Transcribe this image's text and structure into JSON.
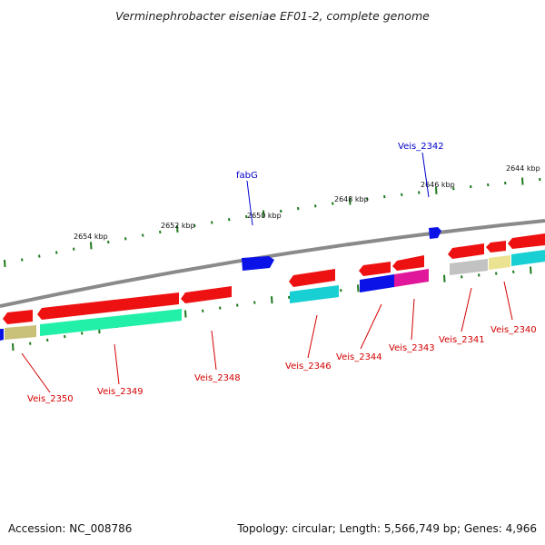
{
  "title": "Verminephrobacter eiseniae EF01-2, complete genome",
  "footer": {
    "accession": "Accession: NC_008786",
    "topology": "Topology: circular; Length: 5,566,749 bp; Genes: 4,966"
  },
  "colors": {
    "backbone": "#8a8a8a",
    "tick": "#1f7a1f",
    "label_red": "#d40000",
    "label_blue": "#0000cc"
  },
  "scale_labels": [
    "2654 kbp",
    "2652 kbp",
    "2650 kbp",
    "2648 kbp",
    "2646 kbp",
    "2644 kbp"
  ],
  "gene_labels_top": [
    {
      "text": "fabG",
      "color": "#0000cc"
    },
    {
      "text": "Veis_2342",
      "color": "#0000cc"
    }
  ],
  "gene_labels_bottom": [
    "Veis_2350",
    "Veis_2349",
    "Veis_2348",
    "Veis_2346",
    "Veis_2344",
    "Veis_2343",
    "Veis_2341",
    "Veis_2340"
  ],
  "genes": [
    {
      "strand": "+",
      "color": "#0a12e8"
    },
    {
      "strand": "+",
      "color": "#0a12e8"
    },
    {
      "strand": "-",
      "color": "#ee1111"
    },
    {
      "strand": "-",
      "color": "#ee1111"
    },
    {
      "strand": "-",
      "color": "#ee1111"
    },
    {
      "strand": "-",
      "color": "#ee1111"
    },
    {
      "strand": "-",
      "color": "#ee1111"
    },
    {
      "strand": "-",
      "color": "#ee1111"
    },
    {
      "strand": "-",
      "color": "#ee1111"
    },
    {
      "strand": "-",
      "color": "#ee1111"
    },
    {
      "strand": "-",
      "color": "#ee1111"
    },
    {
      "strand": "-",
      "color": "#ee1111"
    },
    {
      "strand": "-",
      "color": "#ee1111"
    },
    {
      "strand": "-",
      "color": "#c9c07a"
    },
    {
      "strand": "-",
      "color": "#22f0a8"
    },
    {
      "strand": "-",
      "color": "#18cfd3"
    },
    {
      "strand": "-",
      "color": "#0a12e8"
    },
    {
      "strand": "-",
      "color": "#e0179b"
    },
    {
      "strand": "-",
      "color": "#c2c2c2"
    },
    {
      "strand": "-",
      "color": "#ece392"
    },
    {
      "strand": "-",
      "color": "#18cfd3"
    }
  ]
}
